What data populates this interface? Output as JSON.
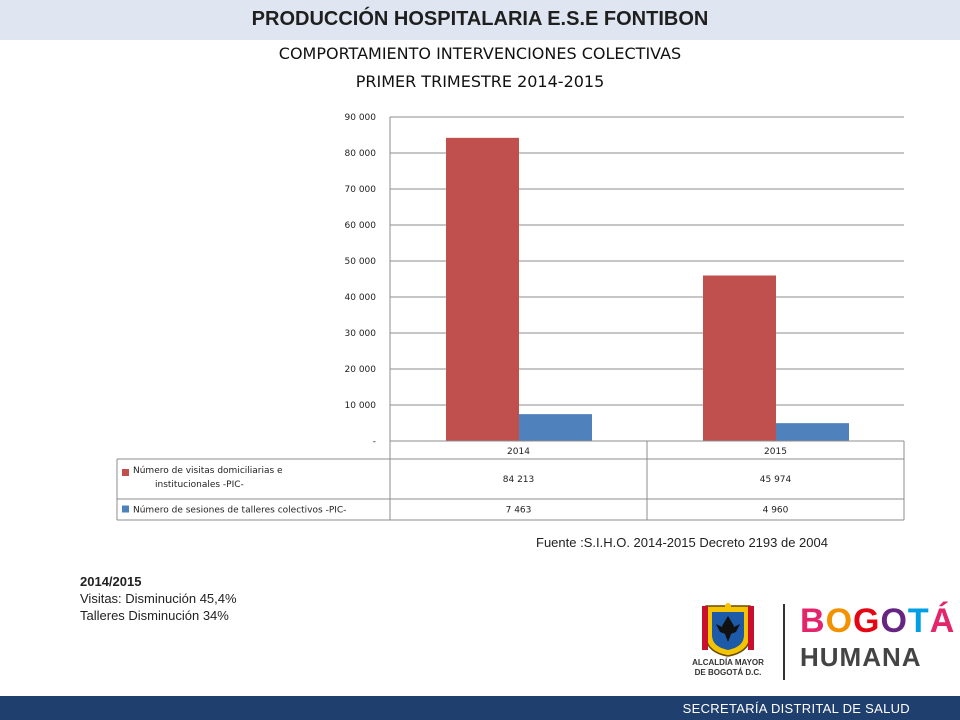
{
  "header": {
    "title": "PRODUCCIÓN HOSPITALARIA E.S.E FONTIBON",
    "subtitle_1": "COMPORTAMIENTO INTERVENCIONES COLECTIVAS",
    "subtitle_2": "PRIMER TRIMESTRE 2014-2015"
  },
  "chart_data": {
    "type": "bar",
    "categories": [
      "2014",
      "2015"
    ],
    "series": [
      {
        "name": "Número de visitas domiciliarias e institucionales -PIC-",
        "name_lines": [
          "Número de visitas domiciliarias e",
          "institucionales -PIC-"
        ],
        "values": [
          84213,
          45974
        ],
        "labels": [
          "84 213",
          "45 974"
        ],
        "color": "#c0504d"
      },
      {
        "name": "Número de sesiones de talleres colectivos -PIC-",
        "name_lines": [
          "Número de sesiones de talleres colectivos -PIC-"
        ],
        "values": [
          7463,
          4960
        ],
        "labels": [
          "7 463",
          "4 960"
        ],
        "color": "#4f81bd"
      }
    ],
    "ylim": [
      0,
      90000
    ],
    "yticks": [
      0,
      10000,
      20000,
      30000,
      40000,
      50000,
      60000,
      70000,
      80000,
      90000
    ],
    "ytick_labels": [
      "-",
      "10 000",
      "20 000",
      "30 000",
      "40 000",
      "50 000",
      "60 000",
      "70 000",
      "80 000",
      "90 000"
    ],
    "grid": true,
    "legend": "data-table",
    "title": "",
    "xlabel": "",
    "ylabel": ""
  },
  "source": "Fuente :S.I.H.O. 2014-2015  Decreto 2193 de 2004",
  "notes": {
    "heading": "2014/2015",
    "line_1": "Visitas: Disminución 45,4%",
    "line_2": "Talleres Disminución 34%"
  },
  "logos": {
    "alcaldia_line_1": "ALCALDÍA MAYOR",
    "alcaldia_line_2": "DE BOGOTÁ D.C.",
    "bogota_letters": [
      {
        "ch": "B",
        "color": "#e3256b"
      },
      {
        "ch": "O",
        "color": "#f39200"
      },
      {
        "ch": "G",
        "color": "#e30613"
      },
      {
        "ch": "O",
        "color": "#662483"
      },
      {
        "ch": "T",
        "color": "#009fe3"
      },
      {
        "ch": "Á",
        "color": "#e3256b"
      }
    ],
    "humana": "HUMANA"
  },
  "footer": {
    "text": "SECRETARÍA DISTRITAL DE SALUD"
  }
}
